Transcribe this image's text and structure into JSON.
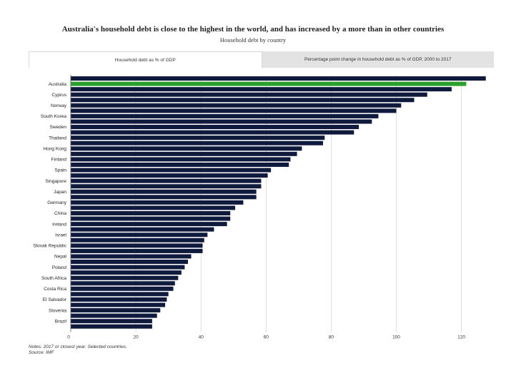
{
  "header": {
    "title": "Australia's household debt is close to the highest in the world, and has increased by a more than in other countries",
    "subtitle": "Household debt by country"
  },
  "tabs": [
    {
      "label": "Household debt as % of GDP",
      "active": true
    },
    {
      "label": "Percentage point change in household debt as % of GDP, 2000 to 2017",
      "active": false
    }
  ],
  "footer": {
    "notes": "Notes: 2017 or closest year. Selected countries.",
    "source": "Source: IMF"
  },
  "colors": {
    "bar": "#0f1a3d",
    "highlight": "#2ca02c",
    "grid": "#d0d0d0",
    "axis": "#555555"
  },
  "chart_data": {
    "type": "bar",
    "orientation": "horizontal",
    "xlim": [
      0,
      130
    ],
    "x_ticks": [
      0,
      20,
      40,
      60,
      80,
      100,
      120
    ],
    "grid": true,
    "highlight": "Australia",
    "bars": [
      {
        "label": "",
        "value": 127.5
      },
      {
        "label": "Australia",
        "value": 121.5
      },
      {
        "label": "",
        "value": 117
      },
      {
        "label": "Cyprus",
        "value": 109.5
      },
      {
        "label": "",
        "value": 105.5
      },
      {
        "label": "Norway",
        "value": 101.5
      },
      {
        "label": "",
        "value": 100
      },
      {
        "label": "South Korea",
        "value": 94.5
      },
      {
        "label": "",
        "value": 92.5
      },
      {
        "label": "Sweden",
        "value": 88.5
      },
      {
        "label": "",
        "value": 87
      },
      {
        "label": "Thailand",
        "value": 78
      },
      {
        "label": "",
        "value": 77.5
      },
      {
        "label": "Hong Kong",
        "value": 71
      },
      {
        "label": "",
        "value": 69.5
      },
      {
        "label": "Finland",
        "value": 67.5
      },
      {
        "label": "",
        "value": 67
      },
      {
        "label": "Spain",
        "value": 61.5
      },
      {
        "label": "",
        "value": 60.5
      },
      {
        "label": "Singapore",
        "value": 58.5
      },
      {
        "label": "",
        "value": 58.5
      },
      {
        "label": "Japan",
        "value": 57
      },
      {
        "label": "",
        "value": 57
      },
      {
        "label": "Germany",
        "value": 53
      },
      {
        "label": "",
        "value": 50.5
      },
      {
        "label": "China",
        "value": 49
      },
      {
        "label": "",
        "value": 49
      },
      {
        "label": "Ireland",
        "value": 48
      },
      {
        "label": "",
        "value": 44
      },
      {
        "label": "Israel",
        "value": 42
      },
      {
        "label": "",
        "value": 41
      },
      {
        "label": "Slovak Republic",
        "value": 40.5
      },
      {
        "label": "",
        "value": 40.5
      },
      {
        "label": "Nepal",
        "value": 37
      },
      {
        "label": "",
        "value": 36
      },
      {
        "label": "Poland",
        "value": 35
      },
      {
        "label": "",
        "value": 34
      },
      {
        "label": "South Africa",
        "value": 33
      },
      {
        "label": "",
        "value": 32
      },
      {
        "label": "Costa Rica",
        "value": 31.5
      },
      {
        "label": "",
        "value": 30
      },
      {
        "label": "El Salvador",
        "value": 29.5
      },
      {
        "label": "",
        "value": 29
      },
      {
        "label": "Slovenia",
        "value": 27.5
      },
      {
        "label": "",
        "value": 26.5
      },
      {
        "label": "Brazil",
        "value": 25
      },
      {
        "label": "",
        "value": 25
      }
    ]
  }
}
